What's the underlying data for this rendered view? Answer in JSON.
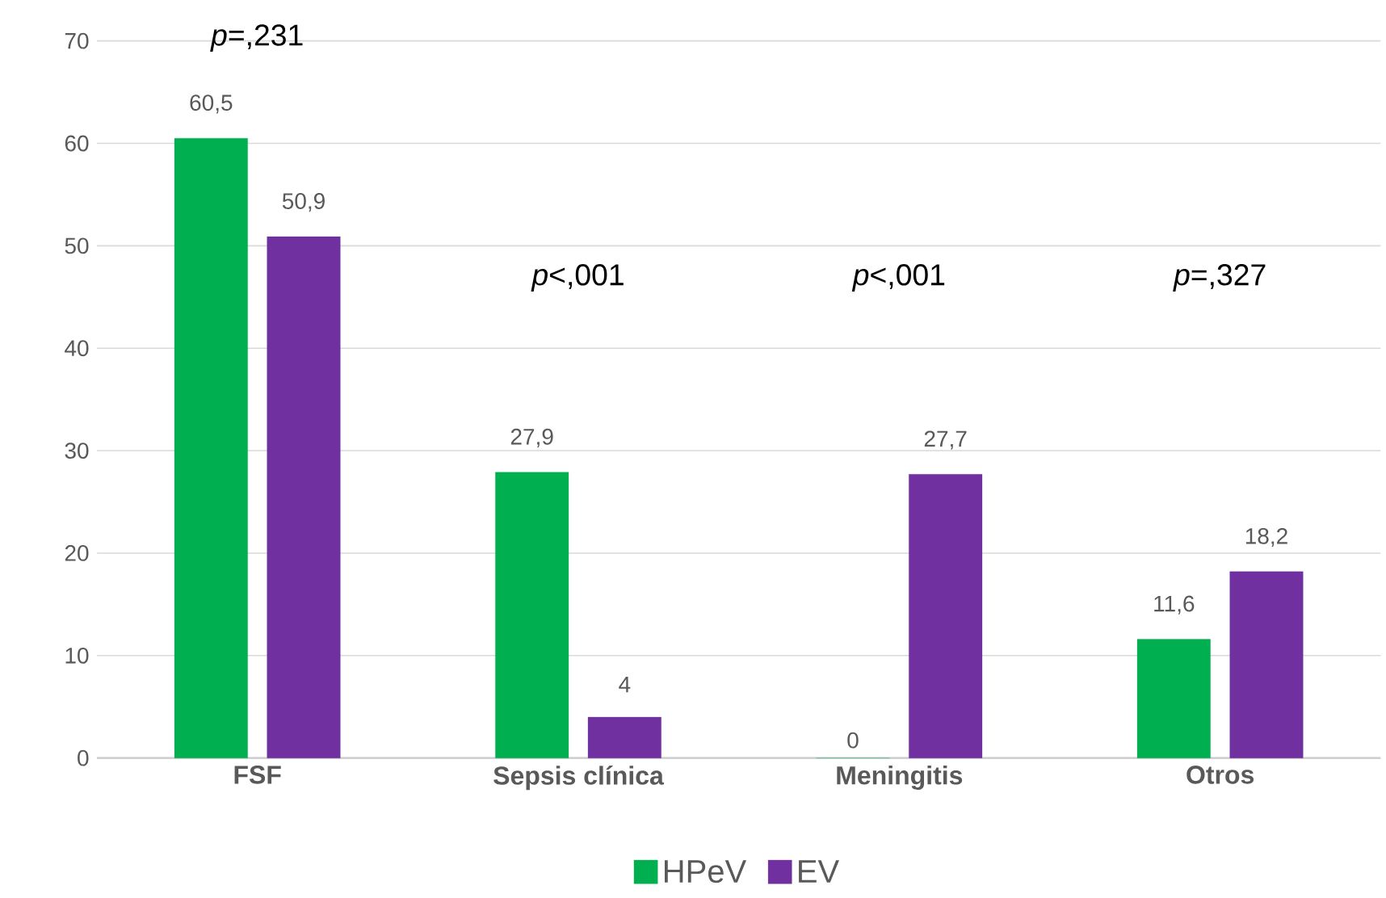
{
  "chart_data": {
    "type": "bar",
    "categories": [
      "FSF",
      "Sepsis clínica",
      "Meningitis",
      "Otros"
    ],
    "series": [
      {
        "name": "HPeV",
        "color": "#00b050",
        "values": [
          60.5,
          27.9,
          0,
          11.6
        ],
        "value_labels": [
          "60,5",
          "27,9",
          "0",
          "11,6"
        ]
      },
      {
        "name": "EV",
        "color": "#7030a0",
        "values": [
          50.9,
          4,
          27.7,
          18.2
        ],
        "value_labels": [
          "50,9",
          "4",
          "27,7",
          "18,2"
        ]
      }
    ],
    "ylim": [
      0,
      70
    ],
    "yticks": [
      0,
      10,
      20,
      30,
      40,
      50,
      60,
      70
    ],
    "grid": "y",
    "legend": "bottom",
    "annotations": [
      "*p*=,231",
      "*p*<,001",
      "*p*<,001",
      "*p*=,327"
    ]
  }
}
